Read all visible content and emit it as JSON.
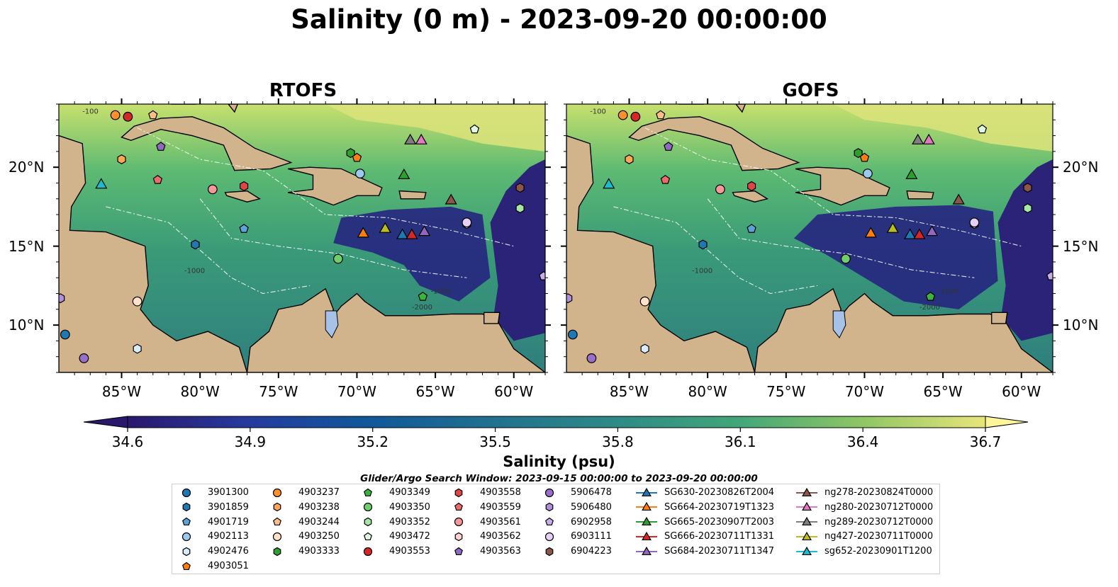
{
  "title": "Salinity (0 m) - 2023-09-20 00:00:00",
  "panels": [
    {
      "id": "rtofs",
      "title": "RTOFS"
    },
    {
      "id": "gofs",
      "title": "GOFS"
    }
  ],
  "map": {
    "lon_range": [
      -89,
      -58
    ],
    "lat_range": [
      7,
      24
    ],
    "lon_ticks": [
      "85°W",
      "80°W",
      "75°W",
      "70°W",
      "65°W",
      "60°W"
    ],
    "lat_ticks": [
      "20°N",
      "15°N",
      "10°N"
    ],
    "land_color": "#d2b48c",
    "lake_color": "#a7c2e6",
    "contour_labels": [
      "-100",
      "-1000",
      "-1000",
      "-2000"
    ]
  },
  "colorbar": {
    "label": "Salinity (psu)",
    "ticks": [
      "34.6",
      "34.9",
      "35.2",
      "35.5",
      "35.8",
      "36.1",
      "36.4",
      "36.7"
    ],
    "range": [
      34.6,
      36.7
    ],
    "colormap": "haline",
    "extend": "both"
  },
  "legend": {
    "title": "Glider/Argo Search Window: 2023-09-15 00:00:00 to 2023-09-20 00:00:00",
    "argo": [
      {
        "id": "3901300",
        "color": "#1f77b4",
        "marker": "circle"
      },
      {
        "id": "3901859",
        "color": "#1f77b4",
        "marker": "hexagon"
      },
      {
        "id": "4901719",
        "color": "#5ba3d9",
        "marker": "pentagon"
      },
      {
        "id": "4902113",
        "color": "#9cc9ef",
        "marker": "circle"
      },
      {
        "id": "4902476",
        "color": "#d9ecfa",
        "marker": "hexagon"
      },
      {
        "id": "4903051",
        "color": "#ff7f0e",
        "marker": "pentagon"
      },
      {
        "id": "4903237",
        "color": "#ff8f2a",
        "marker": "circle"
      },
      {
        "id": "4903238",
        "color": "#ffa657",
        "marker": "hexagon"
      },
      {
        "id": "4903244",
        "color": "#ffbe86",
        "marker": "pentagon"
      },
      {
        "id": "4903250",
        "color": "#ffe3c8",
        "marker": "circle"
      },
      {
        "id": "4903333",
        "color": "#2ca02c",
        "marker": "hexagon"
      },
      {
        "id": "4903349",
        "color": "#3cb33c",
        "marker": "pentagon"
      },
      {
        "id": "4903350",
        "color": "#6fcf6f",
        "marker": "circle"
      },
      {
        "id": "4903352",
        "color": "#a6e6a6",
        "marker": "hexagon"
      },
      {
        "id": "4903472",
        "color": "#e1f7e1",
        "marker": "pentagon"
      },
      {
        "id": "4903553",
        "color": "#d62728",
        "marker": "circle"
      },
      {
        "id": "4903558",
        "color": "#e04545",
        "marker": "hexagon"
      },
      {
        "id": "4903559",
        "color": "#ec6b6b",
        "marker": "pentagon"
      },
      {
        "id": "4903561",
        "color": "#f59898",
        "marker": "circle"
      },
      {
        "id": "4903562",
        "color": "#fcd2d2",
        "marker": "hexagon"
      },
      {
        "id": "4903563",
        "color": "#8e6bbf",
        "marker": "pentagon"
      },
      {
        "id": "5906478",
        "color": "#9a6fca",
        "marker": "circle"
      },
      {
        "id": "5906480",
        "color": "#b28fdb",
        "marker": "hexagon"
      },
      {
        "id": "6902958",
        "color": "#c8aee8",
        "marker": "pentagon"
      },
      {
        "id": "6903111",
        "color": "#e4d1f5",
        "marker": "circle"
      },
      {
        "id": "6904223",
        "color": "#8c564b",
        "marker": "hexagon"
      }
    ],
    "gliders": [
      {
        "id": "SG630-20230826T2004",
        "color": "#1f77b4"
      },
      {
        "id": "SG664-20230719T1323",
        "color": "#ff7f0e"
      },
      {
        "id": "SG665-20230907T2003",
        "color": "#2ca02c"
      },
      {
        "id": "SG666-20230711T1331",
        "color": "#d62728"
      },
      {
        "id": "SG684-20230711T1347",
        "color": "#9467bd"
      },
      {
        "id": "ng278-20230824T0000",
        "color": "#8c564b"
      },
      {
        "id": "ng280-20230712T0000",
        "color": "#e377c2"
      },
      {
        "id": "ng289-20230712T0000",
        "color": "#7f7f7f"
      },
      {
        "id": "ng427-20230711T0000",
        "color": "#bcbd22"
      },
      {
        "id": "sg652-20230901T1200",
        "color": "#17becf"
      }
    ]
  },
  "argo_positions": [
    {
      "id": "3901300",
      "lon": -88.6,
      "lat": 9.4
    },
    {
      "id": "3901859",
      "lon": -80.3,
      "lat": 15.1
    },
    {
      "id": "4901719",
      "lon": -77.2,
      "lat": 16.1
    },
    {
      "id": "4902113",
      "lon": -69.8,
      "lat": 19.6
    },
    {
      "id": "4902476",
      "lon": -84.0,
      "lat": 8.5
    },
    {
      "id": "4903051",
      "lon": -70.0,
      "lat": 20.6
    },
    {
      "id": "4903237",
      "lon": -85.4,
      "lat": 23.3
    },
    {
      "id": "4903238",
      "lon": -85.0,
      "lat": 20.5
    },
    {
      "id": "4903244",
      "lon": -83.0,
      "lat": 23.3
    },
    {
      "id": "4903250",
      "lon": -84.0,
      "lat": 11.5
    },
    {
      "id": "4903333",
      "lon": -70.4,
      "lat": 20.9
    },
    {
      "id": "4903349",
      "lon": -65.8,
      "lat": 11.8
    },
    {
      "id": "4903350",
      "lon": -71.2,
      "lat": 14.2
    },
    {
      "id": "4903352",
      "lon": -59.6,
      "lat": 17.4
    },
    {
      "id": "4903472",
      "lon": -62.5,
      "lat": 22.4
    },
    {
      "id": "4903553",
      "lon": -84.6,
      "lat": 23.2
    },
    {
      "id": "4903558",
      "lon": -77.2,
      "lat": 18.8
    },
    {
      "id": "4903559",
      "lon": -82.7,
      "lat": 19.2
    },
    {
      "id": "4903561",
      "lon": -79.2,
      "lat": 18.6
    },
    {
      "id": "4903562",
      "lon": -63.0,
      "lat": 16.4
    },
    {
      "id": "4903563",
      "lon": -82.5,
      "lat": 21.3
    },
    {
      "id": "5906478",
      "lon": -87.4,
      "lat": 7.9
    },
    {
      "id": "5906480",
      "lon": -88.9,
      "lat": 11.7
    },
    {
      "id": "6902958",
      "lon": -58.1,
      "lat": 13.1
    },
    {
      "id": "6903111",
      "lon": -63.0,
      "lat": 16.5
    },
    {
      "id": "6904223",
      "lon": -59.6,
      "lat": 18.7
    }
  ],
  "glider_positions": [
    {
      "id": "SG630-20230826T2004",
      "lon": -67.1,
      "lat": 15.7
    },
    {
      "id": "SG664-20230719T1323",
      "lon": -69.6,
      "lat": 15.8
    },
    {
      "id": "SG665-20230907T2003",
      "lon": -67.0,
      "lat": 19.5
    },
    {
      "id": "SG666-20230711T1331",
      "lon": -66.5,
      "lat": 15.7
    },
    {
      "id": "SG684-20230711T1347",
      "lon": -65.7,
      "lat": 15.9
    },
    {
      "id": "ng278-20230824T0000",
      "lon": -64.0,
      "lat": 17.9
    },
    {
      "id": "ng280-20230712T0000",
      "lon": -65.9,
      "lat": 21.7
    },
    {
      "id": "ng289-20230712T0000",
      "lon": -66.6,
      "lat": 21.7
    },
    {
      "id": "ng427-20230711T0000",
      "lon": -68.2,
      "lat": 16.1
    },
    {
      "id": "sg652-20230901T1200",
      "lon": -86.3,
      "lat": 18.9
    }
  ]
}
